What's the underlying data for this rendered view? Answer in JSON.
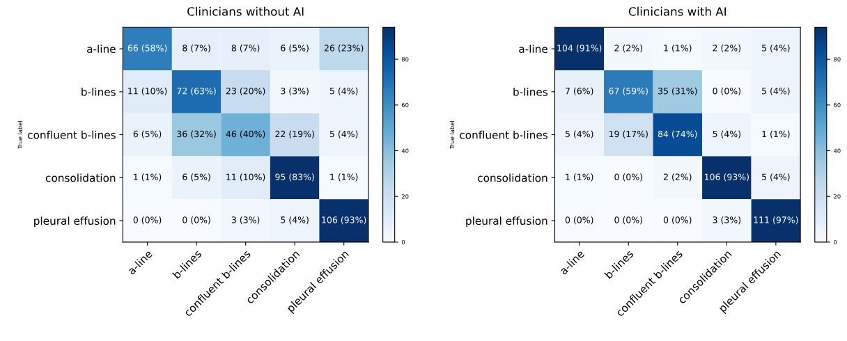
{
  "chart_data": [
    {
      "type": "heatmap",
      "title": "Clinicians without AI",
      "ylabel": "True label",
      "categories": [
        "a-line",
        "b-lines",
        "confluent b-lines",
        "consolidation",
        "pleural effusion"
      ],
      "y_categories": [
        "a-line",
        "b-lines",
        "confluent b-lines",
        "consolidation",
        "pleural effusion"
      ],
      "cells": [
        [
          66,
          8,
          8,
          6,
          26
        ],
        [
          11,
          72,
          23,
          3,
          5
        ],
        [
          6,
          36,
          46,
          22,
          5
        ],
        [
          1,
          6,
          11,
          95,
          1
        ],
        [
          0,
          0,
          3,
          5,
          106
        ]
      ],
      "cell_labels": [
        [
          "66 (58%)",
          "8 (7%)",
          "8 (7%)",
          "6 (5%)",
          "26 (23%)"
        ],
        [
          "11 (10%)",
          "72 (63%)",
          "23 (20%)",
          "3 (3%)",
          "5 (4%)"
        ],
        [
          "6 (5%)",
          "36 (32%)",
          "46 (40%)",
          "22 (19%)",
          "5 (4%)"
        ],
        [
          "1 (1%)",
          "6 (5%)",
          "11 (10%)",
          "95 (83%)",
          "1 (1%)"
        ],
        [
          "0 (0%)",
          "0 (0%)",
          "3 (3%)",
          "5 (4%)",
          "106 (93%)"
        ]
      ],
      "clim": [
        0,
        94
      ],
      "cticks": [
        0,
        20,
        40,
        60,
        80
      ]
    },
    {
      "type": "heatmap",
      "title": "Clinicians with AI",
      "ylabel": "True label",
      "categories": [
        "a-line",
        "b-lines",
        "confluent b-lines",
        "consolidation",
        "pleural effusion"
      ],
      "y_categories": [
        "a-line",
        "b-lines",
        "confluent b-lines",
        "consolidation",
        "pleural effusion"
      ],
      "cells": [
        [
          104,
          2,
          1,
          2,
          5
        ],
        [
          7,
          67,
          35,
          0,
          5
        ],
        [
          5,
          19,
          84,
          5,
          1
        ],
        [
          1,
          0,
          2,
          106,
          5
        ],
        [
          0,
          0,
          0,
          3,
          111
        ]
      ],
      "cell_labels": [
        [
          "104 (91%)",
          "2 (2%)",
          "1 (1%)",
          "2 (2%)",
          "5 (4%)"
        ],
        [
          "7 (6%)",
          "67 (59%)",
          "35 (31%)",
          "0 (0%)",
          "5 (4%)"
        ],
        [
          "5 (4%)",
          "19 (17%)",
          "84 (74%)",
          "5 (4%)",
          "1 (1%)"
        ],
        [
          "1 (1%)",
          "0 (0%)",
          "2 (2%)",
          "106 (93%)",
          "5 (4%)"
        ],
        [
          "0 (0%)",
          "0 (0%)",
          "0 (0%)",
          "3 (3%)",
          "111 (97%)"
        ]
      ],
      "clim": [
        0,
        94
      ],
      "cticks": [
        0,
        20,
        40,
        60,
        80
      ]
    }
  ]
}
